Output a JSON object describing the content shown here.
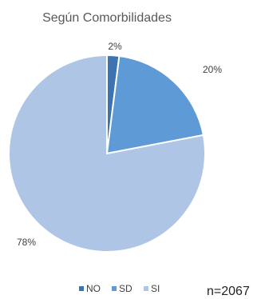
{
  "chart_data": {
    "type": "pie",
    "title": "Según Comorbilidades",
    "categories": [
      "NO",
      "SD",
      "SI"
    ],
    "values": [
      2,
      20,
      78
    ],
    "data_labels": [
      "2%",
      "20%",
      "78%"
    ],
    "colors": [
      "#3d73b0",
      "#5e9ad6",
      "#aec5e6"
    ],
    "legend_position": "bottom",
    "start_angle_deg": 0,
    "direction": "clockwise"
  },
  "annotation": {
    "sample_size": "n=2067"
  }
}
